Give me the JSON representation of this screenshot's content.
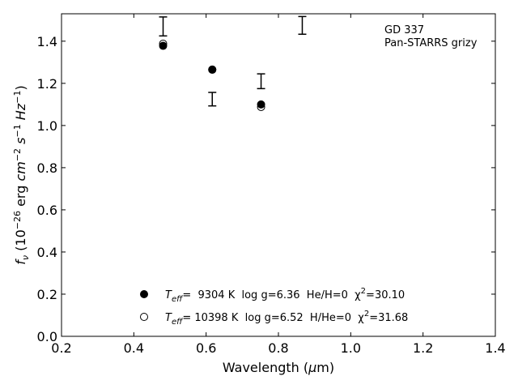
{
  "chart_data": {
    "type": "scatter",
    "title": "",
    "xlabel": "Wavelength (μm)",
    "ylabel": "f_ν (10^-26 erg cm^-2 s^-1 Hz^-1)",
    "xlim": [
      0.2,
      1.4
    ],
    "ylim": [
      0.0,
      1.53
    ],
    "xticks": [
      "0.2",
      "0.4",
      "0.6",
      "0.8",
      "1.0",
      "1.2",
      "1.4"
    ],
    "yticks": [
      "0.0",
      "0.2",
      "0.4",
      "0.6",
      "0.8",
      "1.0",
      "1.2",
      "1.4"
    ],
    "grid": false,
    "annotations": [
      "GD 337",
      "Pan-STARRS grizy"
    ],
    "observed": {
      "x": [
        0.481,
        0.617,
        0.752,
        0.866
      ],
      "y": [
        1.47,
        1.125,
        1.21,
        1.475
      ],
      "err": [
        0.045,
        0.032,
        0.035,
        0.042
      ]
    },
    "series": [
      {
        "marker": "filled",
        "label_parts": [
          "T",
          "eff",
          "=  9304 K  log g=6.36  He/H=0  χ",
          "2",
          "=30.10"
        ],
        "x": [
          0.481,
          0.617,
          0.752
        ],
        "y": [
          1.378,
          1.265,
          1.1
        ]
      },
      {
        "marker": "open",
        "label_parts": [
          "T",
          "eff",
          "= 10398 K  log g=6.52  H/He=0  χ",
          "2",
          "=31.68"
        ],
        "x": [
          0.481,
          0.617,
          0.752
        ],
        "y": [
          1.388,
          1.265,
          1.088
        ]
      }
    ],
    "legend_position": "bottom-center"
  }
}
